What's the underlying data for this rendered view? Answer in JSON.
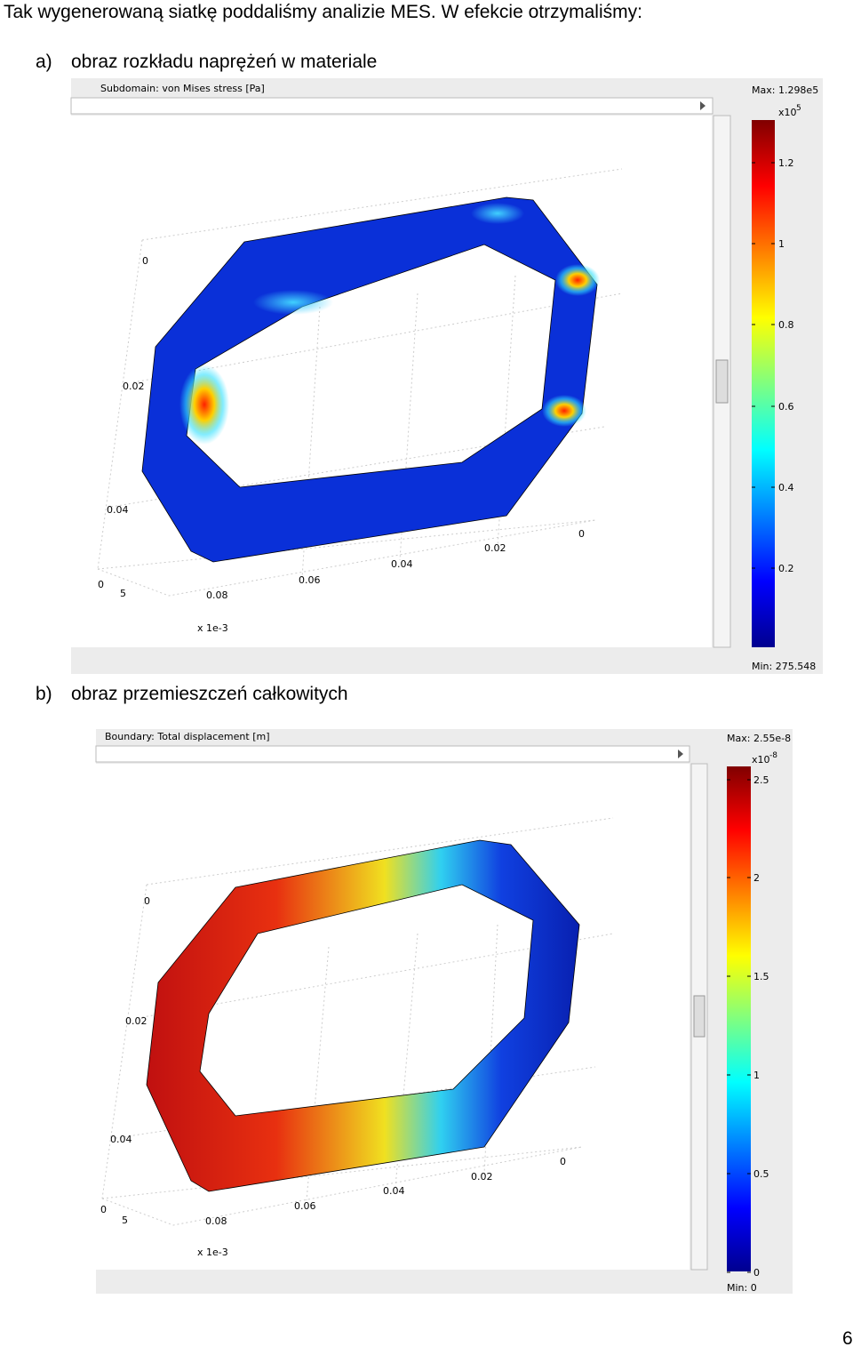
{
  "intro": "Tak wygenerowaną siatkę poddaliśmy analizie MES. W efekcie otrzymaliśmy:",
  "figures": [
    {
      "label": "a)",
      "caption": "obraz rozkładu naprężeń w materiale",
      "plot_title": "Subdomain: von Mises stress [Pa]",
      "max": "Max: 1.298e5",
      "scale_base": "x10",
      "scale_exp": "5",
      "colorbar_ticks": [
        "1.2",
        "1",
        "0.8",
        "0.6",
        "0.4",
        "0.2"
      ],
      "min": "Min: 275.548",
      "axis_labels": [
        "0",
        "0.02",
        "0.04",
        "0",
        "5",
        "0.08",
        "0.06",
        "0.04",
        "0.02",
        "0"
      ],
      "axis_unit": "x 1e-3"
    },
    {
      "label": "b)",
      "caption": "obraz przemieszczeń całkowitych",
      "plot_title": "Boundary: Total displacement [m]",
      "max": "Max: 2.55e-8",
      "scale_base": "x10",
      "scale_exp": "-8",
      "colorbar_ticks": [
        "2.5",
        "2",
        "1.5",
        "1",
        "0.5",
        "0"
      ],
      "min": "Min: 0",
      "axis_labels": [
        "0",
        "0.02",
        "0.04",
        "0",
        "5",
        "0.08",
        "0.06",
        "0.04",
        "0.02",
        "0"
      ],
      "axis_unit": "x 1e-3"
    }
  ],
  "page_number": "6"
}
